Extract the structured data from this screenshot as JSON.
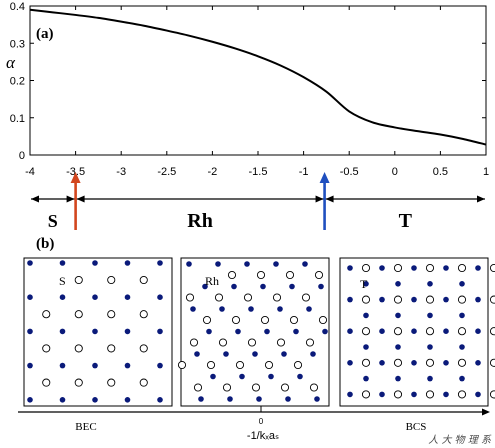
{
  "chart_data": {
    "type": "line",
    "panel_label": "(a)",
    "ylabel": "α",
    "xlim": [
      -4,
      1
    ],
    "ylim": [
      0,
      0.4
    ],
    "xticks": [
      "-4",
      "-3.5",
      "-3",
      "-2.5",
      "-2",
      "-1.5",
      "-1",
      "-0.5",
      "0",
      "0.5",
      "1"
    ],
    "yticks": [
      "0",
      "0.1",
      "0.2",
      "0.3",
      "0.4"
    ],
    "series": [
      {
        "x": [
          -4.0,
          -3.75,
          -3.5,
          -3.25,
          -3.0,
          -2.75,
          -2.5,
          -2.25,
          -2.0,
          -1.75,
          -1.5,
          -1.25,
          -1.0,
          -0.75,
          -0.5,
          -0.25,
          0.0,
          0.25,
          0.5,
          0.75,
          1.0
        ],
        "y": [
          0.39,
          0.383,
          0.376,
          0.368,
          0.358,
          0.347,
          0.334,
          0.32,
          0.304,
          0.286,
          0.265,
          0.24,
          0.209,
          0.17,
          0.117,
          0.088,
          0.074,
          0.064,
          0.055,
          0.043,
          0.028
        ]
      }
    ],
    "colors": {
      "curve": "#000000",
      "arrow_s": "#d2461e",
      "arrow_t": "#1f4fbf",
      "filled_site": "#0a1a7a"
    }
  },
  "regions": [
    {
      "label": "S",
      "from": -4.0,
      "to": -3.5
    },
    {
      "label": "Rh",
      "from": -3.5,
      "to": -0.77
    },
    {
      "label": "T",
      "from": -0.77,
      "to": 1.0
    }
  ],
  "arrows": [
    {
      "x": -3.5,
      "color": "#d2461e"
    },
    {
      "x": -0.77,
      "color": "#1f4fbf"
    }
  ],
  "panel_b": {
    "label": "(b)",
    "lattices": [
      {
        "tag": "S",
        "kind": "square"
      },
      {
        "tag": "Rh",
        "kind": "rhombic"
      },
      {
        "tag": "T",
        "kind": "triangular"
      }
    ],
    "axis_left": "BEC",
    "axis_mid_tick": "0",
    "axis_mid_label": "-1/kₓaₛ",
    "axis_right": "BCS"
  },
  "watermark": "人 大 物 理 系"
}
